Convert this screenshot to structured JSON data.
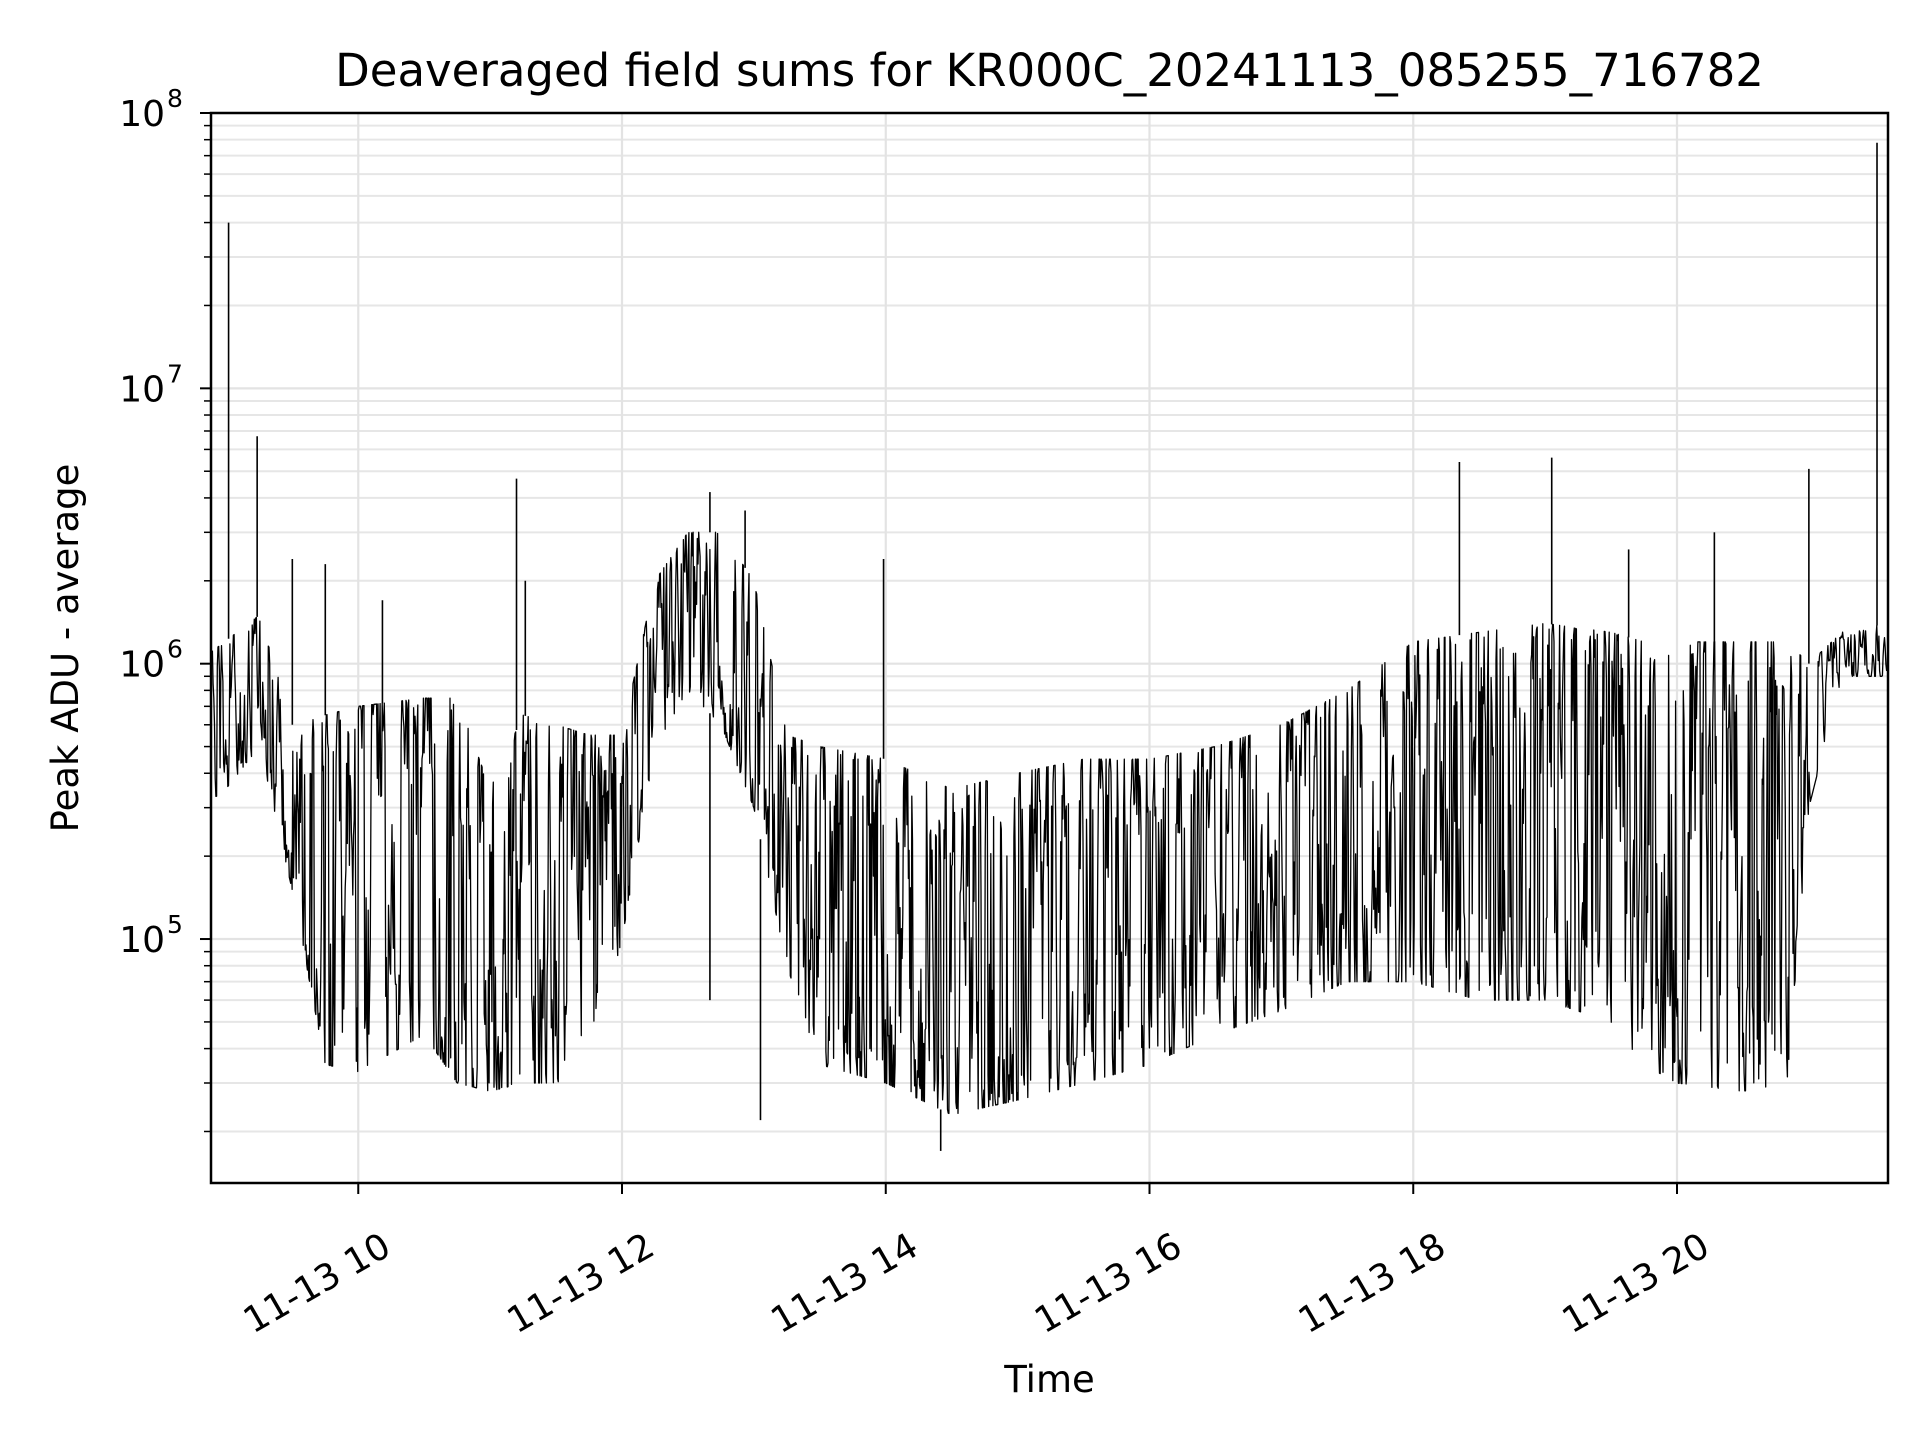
{
  "chart_data": {
    "type": "line",
    "title": "Deaveraged field sums for KR000C_20241113_085255_716782",
    "xlabel": "Time",
    "ylabel": "Peak ADU - average",
    "x_axis": {
      "type": "time",
      "range": [
        "2024-11-13 08:53",
        "2024-11-13 21:36"
      ],
      "ticks": [
        {
          "value": "2024-11-13 10:00",
          "label": "11-13 10"
        },
        {
          "value": "2024-11-13 12:00",
          "label": "11-13 12"
        },
        {
          "value": "2024-11-13 14:00",
          "label": "11-13 14"
        },
        {
          "value": "2024-11-13 16:00",
          "label": "11-13 16"
        },
        {
          "value": "2024-11-13 18:00",
          "label": "11-13 18"
        },
        {
          "value": "2024-11-13 20:00",
          "label": "11-13 20"
        }
      ]
    },
    "y_axis": {
      "scale": "log",
      "range": [
        13000,
        100000000
      ],
      "ticks": [
        {
          "value": 100000,
          "base": "10",
          "exp": "5"
        },
        {
          "value": 1000000,
          "base": "10",
          "exp": "6"
        },
        {
          "value": 10000000,
          "base": "10",
          "exp": "7"
        },
        {
          "value": 100000000,
          "base": "10",
          "exp": "8"
        }
      ]
    },
    "grid": true,
    "line_color": "#000000",
    "series_envelope": [
      {
        "t": "2024-11-13 08:53",
        "low": 300000,
        "high": 1100000
      },
      {
        "t": "2024-11-13 09:15",
        "low": 500000,
        "high": 1500000
      },
      {
        "t": "2024-11-13 09:30",
        "low": 150000,
        "high": 600000
      },
      {
        "t": "2024-11-13 09:45",
        "low": 35000,
        "high": 650000
      },
      {
        "t": "2024-11-13 10:00",
        "low": 33000,
        "high": 700000
      },
      {
        "t": "2024-11-13 10:30",
        "low": 45000,
        "high": 750000
      },
      {
        "t": "2024-11-13 10:45",
        "low": 30000,
        "high": 750000
      },
      {
        "t": "2024-11-13 11:00",
        "low": 28000,
        "high": 350000
      },
      {
        "t": "2024-11-13 11:15",
        "low": 30000,
        "high": 650000
      },
      {
        "t": "2024-11-13 11:30",
        "low": 30000,
        "high": 600000
      },
      {
        "t": "2024-11-13 11:45",
        "low": 35000,
        "high": 550000
      },
      {
        "t": "2024-11-13 12:00",
        "low": 100000,
        "high": 550000
      },
      {
        "t": "2024-11-13 12:15",
        "low": 500000,
        "high": 2000000
      },
      {
        "t": "2024-11-13 12:30",
        "low": 800000,
        "high": 3000000
      },
      {
        "t": "2024-11-13 12:45",
        "low": 600000,
        "high": 3000000
      },
      {
        "t": "2024-11-13 13:00",
        "low": 300000,
        "high": 2000000
      },
      {
        "t": "2024-11-13 13:15",
        "low": 80000,
        "high": 550000
      },
      {
        "t": "2024-11-13 13:30",
        "low": 35000,
        "high": 500000
      },
      {
        "t": "2024-11-13 14:00",
        "low": 30000,
        "high": 450000
      },
      {
        "t": "2024-11-13 14:30",
        "low": 23000,
        "high": 350000
      },
      {
        "t": "2024-11-13 15:00",
        "low": 26000,
        "high": 400000
      },
      {
        "t": "2024-11-13 15:30",
        "low": 30000,
        "high": 450000
      },
      {
        "t": "2024-11-13 16:00",
        "low": 35000,
        "high": 450000
      },
      {
        "t": "2024-11-13 16:30",
        "low": 45000,
        "high": 500000
      },
      {
        "t": "2024-11-13 17:00",
        "low": 55000,
        "high": 600000
      },
      {
        "t": "2024-11-13 17:30",
        "low": 70000,
        "high": 800000
      },
      {
        "t": "2024-11-13 18:00",
        "low": 70000,
        "high": 1200000
      },
      {
        "t": "2024-11-13 18:30",
        "low": 60000,
        "high": 1300000
      },
      {
        "t": "2024-11-13 19:00",
        "low": 60000,
        "high": 1400000
      },
      {
        "t": "2024-11-13 19:30",
        "low": 50000,
        "high": 1300000
      },
      {
        "t": "2024-11-13 19:45",
        "low": 35000,
        "high": 1200000
      },
      {
        "t": "2024-11-13 20:00",
        "low": 30000,
        "high": 1200000
      },
      {
        "t": "2024-11-13 20:30",
        "low": 28000,
        "high": 1200000
      },
      {
        "t": "2024-11-13 20:50",
        "low": 30000,
        "high": 1200000
      },
      {
        "t": "2024-11-13 21:00",
        "low": 300000,
        "high": 1000000
      },
      {
        "t": "2024-11-13 21:15",
        "low": 900000,
        "high": 1300000
      },
      {
        "t": "2024-11-13 21:36",
        "low": 900000,
        "high": 1400000
      }
    ],
    "spikes": [
      {
        "t": "2024-11-13 09:01",
        "value": 40000000
      },
      {
        "t": "2024-11-13 09:14",
        "value": 6700000
      },
      {
        "t": "2024-11-13 09:30",
        "value": 2400000
      },
      {
        "t": "2024-11-13 09:45",
        "value": 2300000
      },
      {
        "t": "2024-11-13 10:11",
        "value": 1700000
      },
      {
        "t": "2024-11-13 11:12",
        "value": 4700000
      },
      {
        "t": "2024-11-13 11:16",
        "value": 2000000
      },
      {
        "t": "2024-11-13 12:40",
        "value": 4200000
      },
      {
        "t": "2024-11-13 12:56",
        "value": 3600000
      },
      {
        "t": "2024-11-13 13:59",
        "value": 2400000
      },
      {
        "t": "2024-11-13 18:21",
        "value": 5400000
      },
      {
        "t": "2024-11-13 19:03",
        "value": 5600000
      },
      {
        "t": "2024-11-13 19:38",
        "value": 2600000
      },
      {
        "t": "2024-11-13 20:17",
        "value": 3000000
      },
      {
        "t": "2024-11-13 21:00",
        "value": 5100000
      },
      {
        "t": "2024-11-13 21:31",
        "value": 78000000
      }
    ],
    "dips": [
      {
        "t": "2024-11-13 12:40",
        "value": 60000
      },
      {
        "t": "2024-11-13 13:03",
        "value": 22000
      },
      {
        "t": "2024-11-13 14:25",
        "value": 17000
      }
    ]
  }
}
